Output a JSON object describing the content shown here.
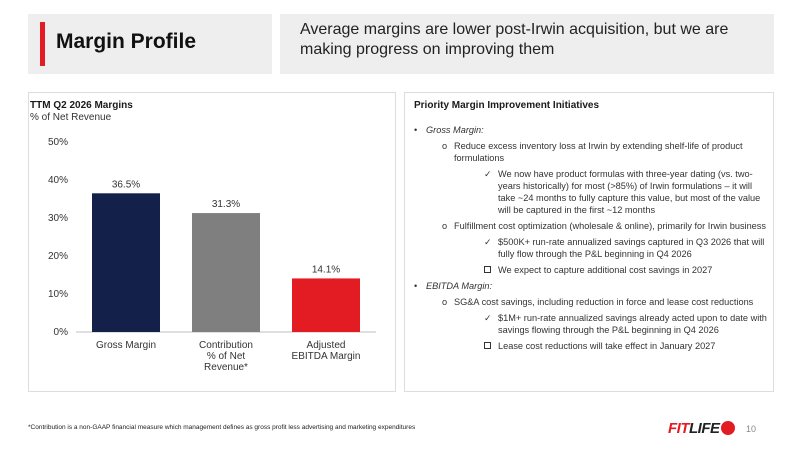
{
  "header": {
    "title": "Margin Profile",
    "subtitle": "Average margins are lower post-Irwin acquisition, but we are making progress on improving them"
  },
  "chart_panel": {
    "title": "TTM Q2 2026 Margins",
    "subtitle": "% of Net Revenue"
  },
  "chart_data": {
    "type": "bar",
    "categories": [
      [
        "Gross Margin"
      ],
      [
        "Contribution",
        "% of Net",
        "Revenue*"
      ],
      [
        "Adjusted",
        "EBITDA Margin"
      ]
    ],
    "values": [
      36.5,
      31.3,
      14.1
    ],
    "value_labels": [
      "36.5%",
      "31.3%",
      "14.1%"
    ],
    "colors": [
      "#13204a",
      "#7f7f7f",
      "#e31b23"
    ],
    "ylim": [
      0,
      50
    ],
    "yticks": [
      "0%",
      "10%",
      "20%",
      "30%",
      "40%",
      "50%"
    ],
    "gridlines": false,
    "title": "TTM Q2 2026 Margins",
    "ylabel": "% of Net Revenue"
  },
  "initiatives": {
    "title": "Priority Margin Improvement Initiatives",
    "items": [
      {
        "level": 1,
        "text": "Gross Margin:"
      },
      {
        "level": 2,
        "marker": "o",
        "text": "Reduce excess inventory loss at Irwin by extending shelf-life of product formulations"
      },
      {
        "level": 3,
        "marker": "check",
        "text": "We now have product formulas with three-year dating (vs. two-years historically) for most (>85%) of Irwin formulations – it will take ~24 months to fully capture this value, but most of the value will be captured in the first ~12 months"
      },
      {
        "level": 2,
        "marker": "o",
        "text": "Fulfillment cost optimization (wholesale & online), primarily for Irwin business"
      },
      {
        "level": 3,
        "marker": "check",
        "text": "$500K+ run-rate annualized savings captured in Q3 2026 that will fully flow through the P&L beginning in Q4 2026"
      },
      {
        "level": 3,
        "marker": "box",
        "text": "We expect to capture additional cost savings in 2027"
      },
      {
        "level": 1,
        "text": "EBITDA Margin:"
      },
      {
        "level": 2,
        "marker": "o",
        "text": "SG&A cost savings, including reduction in force and lease cost reductions"
      },
      {
        "level": 3,
        "marker": "check",
        "text": "$1M+ run-rate annualized savings already acted upon to date with savings flowing through the P&L beginning in Q4 2026"
      },
      {
        "level": 3,
        "marker": "box",
        "text": "Lease cost reductions will take effect in January 2027"
      }
    ]
  },
  "footer": {
    "footnote": "*Contribution is a non-GAAP financial measure which management defines as gross profit less advertising and marketing expenditures",
    "logo_fit": "FIT",
    "logo_life": "LIFE",
    "page_number": "10"
  }
}
